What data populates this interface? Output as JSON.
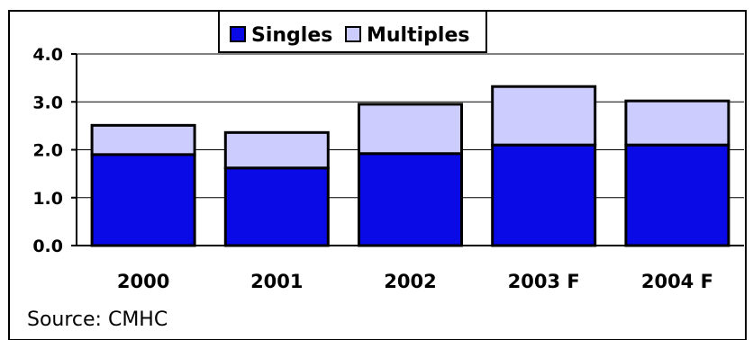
{
  "chart_data": {
    "type": "bar",
    "stacked": true,
    "categories": [
      "2000",
      "2001",
      "2002",
      "2003 F",
      "2004 F"
    ],
    "series": [
      {
        "name": "Singles",
        "values": [
          1.9,
          1.62,
          1.92,
          2.1,
          2.1
        ],
        "color": "#0a0ae6"
      },
      {
        "name": "Multiples",
        "values": [
          0.61,
          0.74,
          1.03,
          1.22,
          0.92
        ],
        "color": "#ccccff"
      }
    ],
    "yticks": [
      "0.0",
      "1.0",
      "2.0",
      "3.0",
      "4.0"
    ],
    "ylim": [
      0,
      4
    ],
    "grid": true,
    "legend_position": "top-center"
  },
  "source": "Source: CMHC"
}
